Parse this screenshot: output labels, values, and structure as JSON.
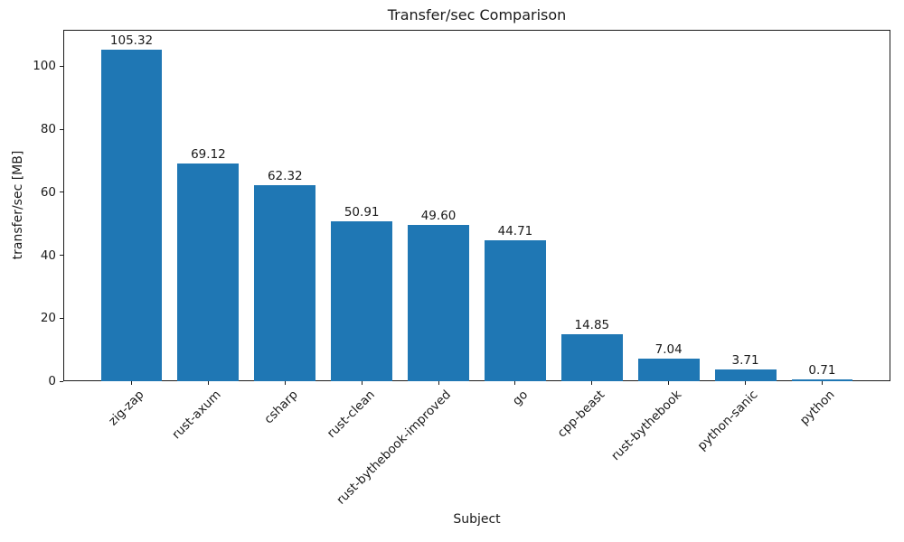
{
  "chart_data": {
    "type": "bar",
    "title": "Transfer/sec Comparison",
    "xlabel": "Subject",
    "ylabel": "transfer/sec [MB]",
    "categories": [
      "zig-zap",
      "rust-axum",
      "csharp",
      "rust-clean",
      "rust-bythebook-improved",
      "go",
      "cpp-beast",
      "rust-bythebook",
      "python-sanic",
      "python"
    ],
    "values": [
      105.32,
      69.12,
      62.32,
      50.91,
      49.6,
      44.71,
      14.85,
      7.04,
      3.71,
      0.71
    ],
    "value_labels": [
      "105.32",
      "69.12",
      "62.32",
      "50.91",
      "49.60",
      "44.71",
      "14.85",
      "7.04",
      "3.71",
      "0.71"
    ],
    "bar_color": "#1f77b4",
    "ylim": [
      0,
      111.6
    ],
    "yticks": [
      0,
      20,
      40,
      60,
      80,
      100
    ],
    "xticks_rotation_deg": 45,
    "grid": false,
    "legend": "none",
    "bar_width_fraction": 0.8
  }
}
